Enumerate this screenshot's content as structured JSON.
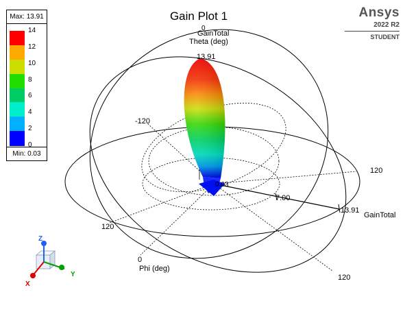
{
  "header": {
    "title": "Gain Plot 1",
    "brand": "Ansys",
    "version": "2022 R2",
    "license": "STUDENT"
  },
  "legend": {
    "max_label": "Max: 13.91",
    "min_label": "Min: 0.03",
    "ticks": [
      "14",
      "12",
      "10",
      "8",
      "6",
      "4",
      "2",
      "0"
    ],
    "colors": [
      "#ff0000",
      "#ffaa00",
      "#ccdd00",
      "#22dd00",
      "#00cc66",
      "#00eecc",
      "#00b0ff",
      "#0000ff"
    ]
  },
  "chart_data": {
    "type": "3d-polar-radiation-pattern",
    "quantity": "GainTotal",
    "max": 13.91,
    "min": 0.03,
    "axes": {
      "theta_label": "Theta (deg)",
      "theta_title": "GainTotal",
      "theta_tick_top": "0",
      "phi_label": "Phi (deg)",
      "phi_ticks": [
        "-120",
        "120",
        "120",
        "120",
        "0"
      ],
      "radial_label": "GainTotal",
      "radial_ticks": [
        "0.03",
        "7.00",
        "13.91"
      ]
    },
    "peak_label": "13.91",
    "colormap_range": [
      0,
      14
    ]
  },
  "triad": {
    "x_label": "X",
    "y_label": "Y",
    "z_label": "Z",
    "x_color": "#e00000",
    "y_color": "#00a000",
    "z_color": "#2060ff"
  }
}
